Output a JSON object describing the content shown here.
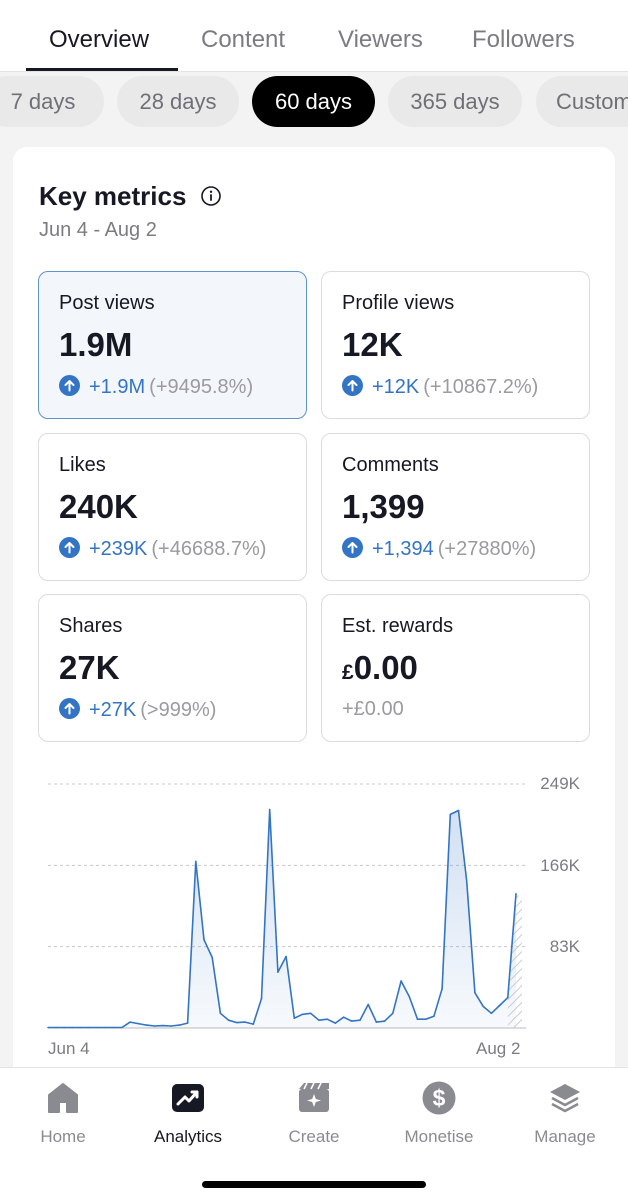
{
  "tabs": [
    {
      "label": "Overview",
      "active": true
    },
    {
      "label": "Content",
      "active": false
    },
    {
      "label": "Viewers",
      "active": false
    },
    {
      "label": "Followers",
      "active": false
    }
  ],
  "chips": [
    {
      "label": "7 days",
      "active": false
    },
    {
      "label": "28 days",
      "active": false
    },
    {
      "label": "60 days",
      "active": true
    },
    {
      "label": "365 days",
      "active": false
    },
    {
      "label": "Custom",
      "active": false
    }
  ],
  "key_metrics": {
    "title": "Key metrics",
    "date_range": "Jun 4 - Aug 2",
    "metrics": [
      {
        "label": "Post views",
        "value": "1.9M",
        "delta": "+1.9M",
        "percent": "(+9495.8%)",
        "selected": true
      },
      {
        "label": "Profile views",
        "value": "12K",
        "delta": "+12K",
        "percent": "(+10867.2%)"
      },
      {
        "label": "Likes",
        "value": "240K",
        "delta": "+239K",
        "percent": "(+46688.7%)"
      },
      {
        "label": "Comments",
        "value": "1,399",
        "delta": "+1,394",
        "percent": "(+27880%)"
      },
      {
        "label": "Shares",
        "value": "27K",
        "delta": "+27K",
        "percent": "(>999%)"
      },
      {
        "label": "Est. rewards",
        "currency": "£",
        "value": "0.00",
        "change_text": "+£0.00"
      }
    ]
  },
  "chart_data": {
    "type": "area",
    "x_start_label": "Jun 4",
    "x_end_label": "Aug 2",
    "y_tick_labels": [
      "249K",
      "166K",
      "83K"
    ],
    "y_ticks": [
      249000,
      166000,
      83000
    ],
    "ylim": [
      0,
      249000
    ],
    "grid": true,
    "color": "#3474c4",
    "series": [
      {
        "values": [
          500,
          500,
          500,
          500,
          500,
          500,
          500,
          500,
          500,
          500,
          6000,
          4500,
          3000,
          2000,
          2500,
          2000,
          3000,
          5000,
          170000,
          90000,
          72000,
          15000,
          8000,
          5500,
          6000,
          4000,
          30000,
          223000,
          57000,
          73000,
          10000,
          14000,
          15000,
          8000,
          9000,
          5000,
          11000,
          7000,
          8000,
          24000,
          6000,
          7000,
          15000,
          48000,
          32000,
          9000,
          9000,
          12000,
          40000,
          218000,
          222000,
          150000,
          36000,
          22000,
          15000,
          23000,
          31000,
          137000
        ]
      }
    ]
  },
  "nav": [
    {
      "label": "Home",
      "icon": "home-icon",
      "active": false
    },
    {
      "label": "Analytics",
      "icon": "analytics-icon",
      "active": true
    },
    {
      "label": "Create",
      "icon": "create-icon",
      "active": false
    },
    {
      "label": "Monetise",
      "icon": "monetise-icon",
      "active": false
    },
    {
      "label": "Manage",
      "icon": "manage-icon",
      "active": false
    }
  ]
}
